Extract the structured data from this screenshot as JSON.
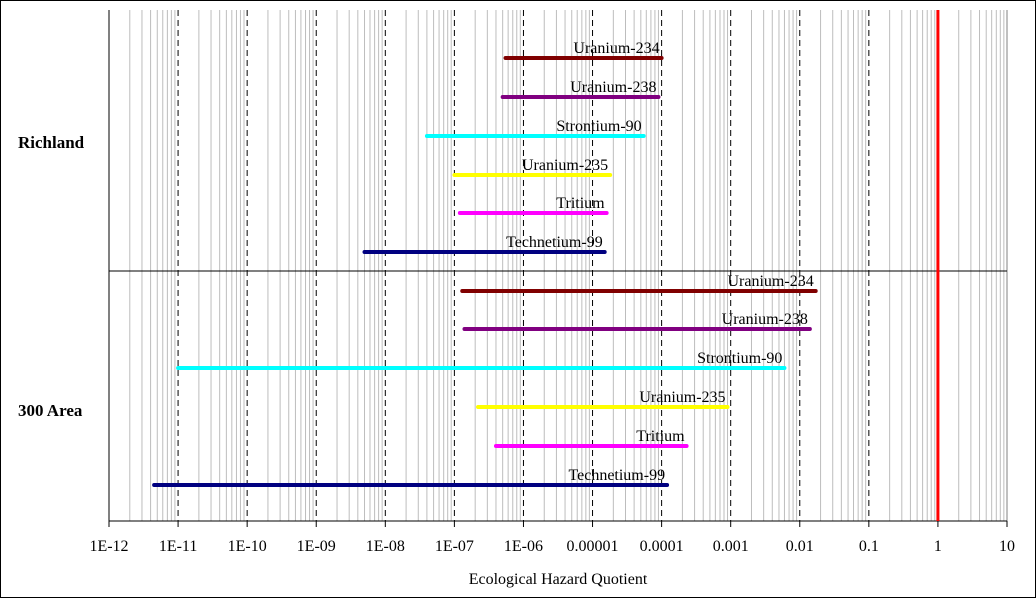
{
  "chart_data": {
    "type": "range-bar",
    "xscale": "log",
    "xlim": [
      1e-12,
      10
    ],
    "xlabel": "Ecological Hazard Quotient",
    "tick_labels": [
      "1E-12",
      "1E-11",
      "1E-10",
      "1E-09",
      "1E-08",
      "1E-07",
      "1E-06",
      "0.00001",
      "0.0001",
      "0.001",
      "0.01",
      "0.1",
      "1",
      "10"
    ],
    "minor_gridlines": true,
    "major_gridlines": "dashed",
    "reference_line": {
      "x": 1,
      "color": "#ff0000"
    },
    "groups": [
      {
        "label": "Richland",
        "series": [
          {
            "name": "Uranium-234",
            "color": "#800000",
            "min": 5.5e-07,
            "max": 0.0001
          },
          {
            "name": "Uranium-238",
            "color": "#800080",
            "min": 5e-07,
            "max": 9e-05
          },
          {
            "name": "Strontium-90",
            "color": "#00ffff",
            "min": 4e-08,
            "max": 5.5e-05
          },
          {
            "name": "Uranium-235",
            "color": "#ffff00",
            "min": 1e-07,
            "max": 1.8e-05
          },
          {
            "name": "Tritium",
            "color": "#ff00ff",
            "min": 1.2e-07,
            "max": 1.6e-05
          },
          {
            "name": "Technetium-99",
            "color": "#000080",
            "min": 5e-09,
            "max": 1.5e-05
          }
        ]
      },
      {
        "label": "300 Area",
        "series": [
          {
            "name": "Uranium-234",
            "color": "#800000",
            "min": 1.3e-07,
            "max": 0.017
          },
          {
            "name": "Uranium-238",
            "color": "#800080",
            "min": 1.4e-07,
            "max": 0.014
          },
          {
            "name": "Strontium-90",
            "color": "#00ffff",
            "min": 1e-11,
            "max": 0.006
          },
          {
            "name": "Uranium-235",
            "color": "#ffff00",
            "min": 2.2e-07,
            "max": 0.0009
          },
          {
            "name": "Tritium",
            "color": "#ff00ff",
            "min": 4e-07,
            "max": 0.00023
          },
          {
            "name": "Technetium-99",
            "color": "#000080",
            "min": 4.5e-12,
            "max": 0.00012
          }
        ]
      }
    ]
  }
}
